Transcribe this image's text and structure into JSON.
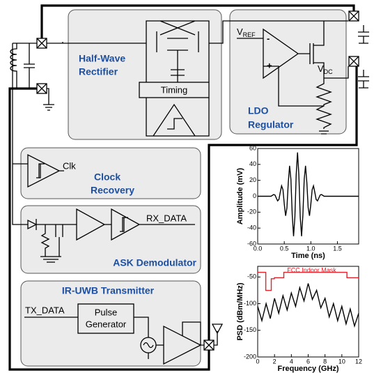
{
  "diagram": {
    "rectifier": {
      "title_lines": [
        "Half-Wave",
        "Rectifier"
      ],
      "timing": "Timing"
    },
    "ldo": {
      "title_lines": [
        "LDO",
        "Regulator"
      ],
      "vref": {
        "main": "V",
        "sub": "REF"
      },
      "vdc": {
        "main": "V",
        "sub": "DC"
      },
      "opamp_inputs": [
        "-",
        "+"
      ]
    },
    "clock": {
      "signal": "Clk",
      "title_lines": [
        "Clock",
        "Recovery"
      ]
    },
    "ask": {
      "output": "RX_DATA",
      "title": "ASK Demodulator"
    },
    "tx": {
      "title": "IR-UWB Transmitter",
      "input": "TX_DATA",
      "pulse_lines": [
        "Pulse",
        "Generator"
      ]
    }
  },
  "chart_data": [
    {
      "type": "line",
      "xlabel": "Time (ns)",
      "ylabel": "Amplitude (mV)",
      "xlim": [
        0,
        1.9
      ],
      "ylim": [
        -60,
        60
      ],
      "xticks": [
        {
          "value": 0,
          "label": "0.0"
        },
        0.5,
        {
          "value": 1,
          "label": "1.0"
        },
        1.5
      ],
      "yticks": [
        -60,
        -40,
        -20,
        0,
        20,
        40,
        60
      ],
      "color": "#000000",
      "x": [
        0,
        0.25,
        0.3,
        0.325,
        0.35,
        0.375,
        0.4,
        0.425,
        0.45,
        0.475,
        0.5,
        0.525,
        0.55,
        0.575,
        0.6,
        0.625,
        0.65,
        0.675,
        0.7,
        0.725,
        0.75,
        0.775,
        0.8,
        0.825,
        0.85,
        0.875,
        0.9,
        0.925,
        0.95,
        0.975,
        1.0,
        1.025,
        1.05,
        1.075,
        1.1,
        1.125,
        1.15,
        1.175,
        1.2,
        1.25,
        1.9
      ],
      "values": [
        0,
        0,
        2.2,
        1.6,
        -2.2,
        -5.8,
        -3.9,
        5.1,
        13.1,
        8.2,
        -10.1,
        -24.5,
        -14.5,
        16.9,
        38.3,
        21.4,
        -23.5,
        -50.2,
        -26.4,
        27.2,
        55,
        27.2,
        -26.4,
        -50.2,
        -23.5,
        21.4,
        38.3,
        16.9,
        -14.5,
        -24.5,
        -10.1,
        8.2,
        13.1,
        5.1,
        -3.9,
        -5.8,
        -2.2,
        1.6,
        2.2,
        0,
        0
      ]
    },
    {
      "type": "line",
      "xlabel": "Frequency (GHz)",
      "ylabel": "PSD (dBm/MHz)",
      "annotation": "FCC Indoor Mask",
      "xlim": [
        0,
        12
      ],
      "ylim": [
        -200,
        -30
      ],
      "xticks": [
        0,
        2,
        4,
        6,
        8,
        10,
        12
      ],
      "yticks": [
        -200,
        -150,
        -100,
        -50
      ],
      "series": [
        {
          "color": "#e8202a",
          "x": [
            0,
            0.96,
            0.96,
            1.61,
            1.61,
            1.99,
            1.99,
            3.1,
            3.1,
            10.6,
            10.6,
            12
          ],
          "values": [
            -41.3,
            -41.3,
            -75.3,
            -75.3,
            -53.3,
            -53.3,
            -51.3,
            -51.3,
            -41.3,
            -41.3,
            -51.3,
            -51.3
          ]
        },
        {
          "color": "#000000",
          "x": [
            0,
            0.5,
            1,
            1.5,
            2,
            2.5,
            3,
            3.5,
            4,
            4.5,
            5,
            5.5,
            6,
            6.5,
            7,
            7.5,
            8,
            8.5,
            9,
            9.5,
            10,
            10.5,
            11,
            11.5,
            12
          ],
          "values": [
            -105,
            -132,
            -100,
            -128,
            -90,
            -118,
            -85,
            -112,
            -80,
            -105,
            -70,
            -95,
            -62,
            -92,
            -75,
            -108,
            -90,
            -125,
            -100,
            -132,
            -105,
            -138,
            -110,
            -142,
            -118
          ]
        }
      ]
    }
  ]
}
